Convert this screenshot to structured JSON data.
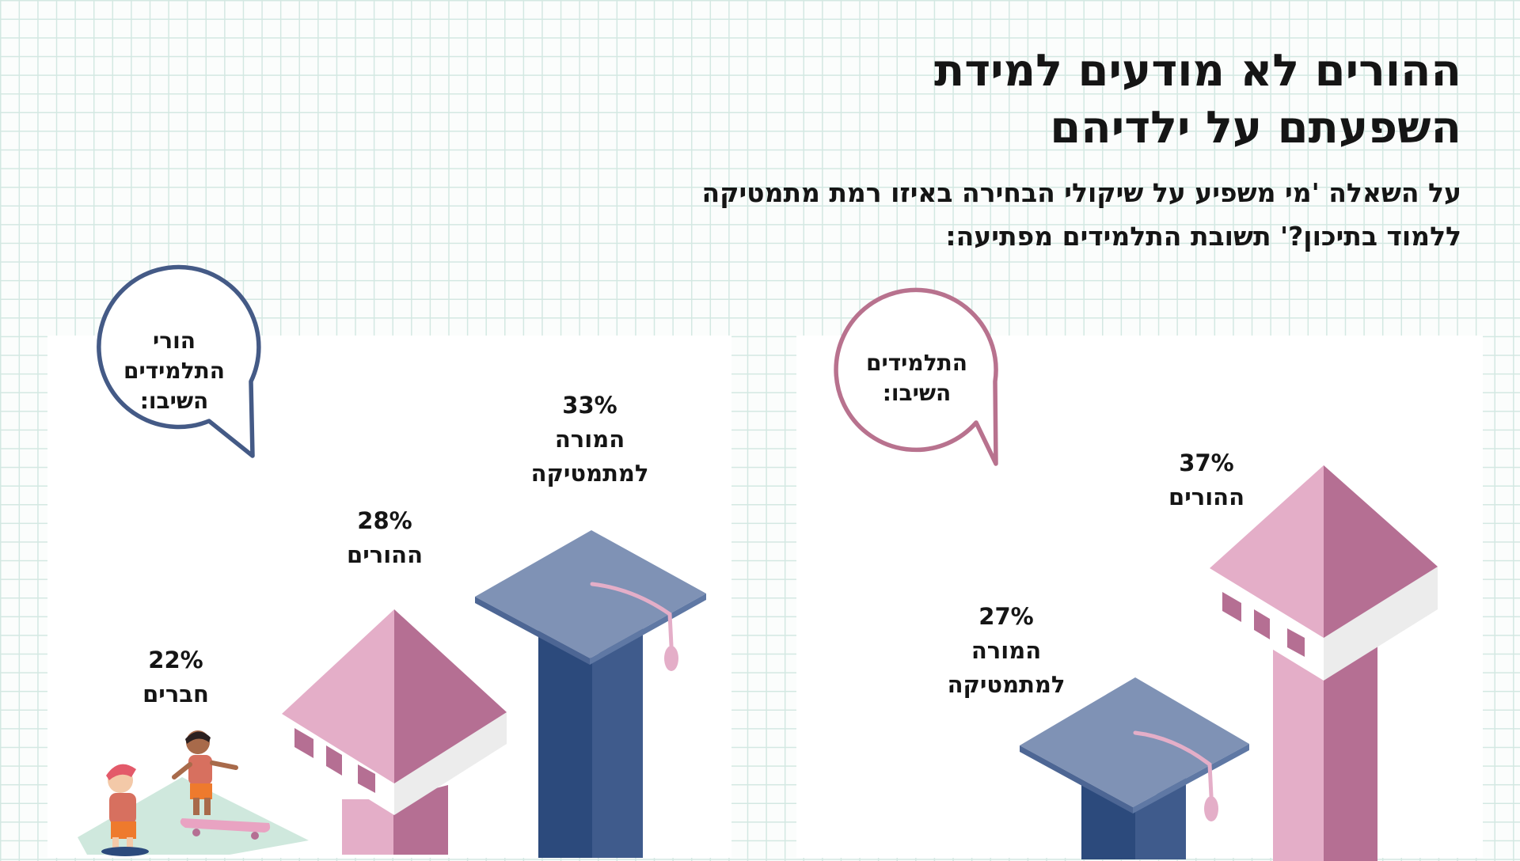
{
  "title": {
    "line1": "ההורים לא מודעים למידת",
    "line2": "השפעתם על ילדיהם"
  },
  "subtitle": {
    "line1": "על השאלה 'מי משפיע על שיקולי הבחירה באיזו רמת מתמטיקה",
    "line2": "ללמוד בתיכון?' תשובת התלמידים מפתיעה:"
  },
  "colors": {
    "parents_pink": "#e4aec8",
    "parents_dark_pink": "#b56f93",
    "teacher_blue": "#7f92b5",
    "teacher_dark_blue": "#2c4a7c",
    "bubble_blue": "#445a86",
    "bubble_pink": "#b8728e",
    "friends_green": "#cfe8dd"
  },
  "chart_data": [
    {
      "type": "bar",
      "bubble": "הורי התלמידים השיבו:",
      "bubble_lines": [
        "הורי",
        "התלמידים",
        "השיבו:"
      ],
      "categories": [
        "חברים",
        "ההורים",
        "המורה למתמטיקה"
      ],
      "values": [
        22,
        28,
        33
      ],
      "unit": "%",
      "icons": [
        "friends-skateboard-icon",
        "house-icon",
        "graduation-cap-icon"
      ],
      "labels": [
        {
          "value": "22%",
          "name_lines": [
            "חברים"
          ]
        },
        {
          "value": "28%",
          "name_lines": [
            "ההורים"
          ]
        },
        {
          "value": "33%",
          "name_lines": [
            "המורה",
            "למתמטיקה"
          ]
        }
      ]
    },
    {
      "type": "bar",
      "bubble": "התלמידים השיבו:",
      "bubble_lines": [
        "התלמידים",
        "השיבו:"
      ],
      "categories": [
        "המורה למתמטיקה",
        "ההורים"
      ],
      "values": [
        27,
        37
      ],
      "unit": "%",
      "icons": [
        "graduation-cap-icon",
        "house-icon"
      ],
      "labels": [
        {
          "value": "27%",
          "name_lines": [
            "המורה",
            "למתמטיקה"
          ]
        },
        {
          "value": "37%",
          "name_lines": [
            "ההורים"
          ]
        }
      ]
    }
  ]
}
